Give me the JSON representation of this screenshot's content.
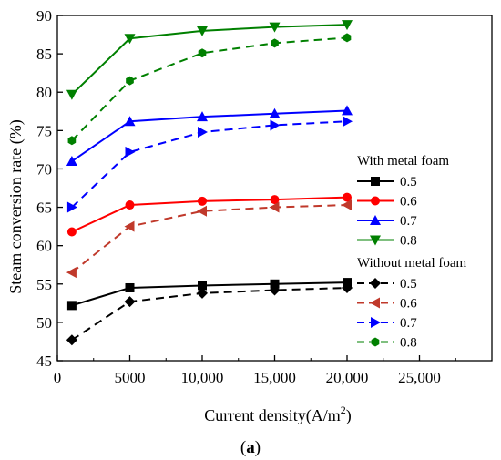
{
  "chart_data": {
    "type": "line",
    "xlabel": "Current density(A/m",
    "xlabel_sup": "2",
    "xlabel_close": ")",
    "ylabel": "Steam conversion rate (%)",
    "xlim": [
      0,
      30000
    ],
    "ylim": [
      45,
      90
    ],
    "x_ticks": [
      0,
      5000,
      10000,
      15000,
      20000,
      25000
    ],
    "x_tick_labels": [
      "0",
      "5000",
      "10,000",
      "15,000",
      "20,000",
      "25,000"
    ],
    "y_ticks": [
      45,
      50,
      55,
      60,
      65,
      70,
      75,
      80,
      85,
      90
    ],
    "y_tick_labels": [
      "45",
      "50",
      "55",
      "60",
      "65",
      "70",
      "75",
      "80",
      "85",
      "90"
    ],
    "grid": false,
    "legend_position": "right",
    "legend_groups": [
      {
        "title": "With metal foam",
        "series_indices": [
          0,
          1,
          2,
          3
        ]
      },
      {
        "title": "Without metal foam",
        "series_indices": [
          4,
          5,
          6,
          7
        ]
      }
    ],
    "x": [
      1000,
      5000,
      10000,
      15000,
      20000
    ],
    "series": [
      {
        "name": "0.5",
        "color": "#000000",
        "dash": "solid",
        "marker": "square",
        "values": [
          52.2,
          54.5,
          54.8,
          55.0,
          55.2
        ]
      },
      {
        "name": "0.6",
        "color": "#ff0000",
        "dash": "solid",
        "marker": "circle",
        "values": [
          61.8,
          65.3,
          65.8,
          66.0,
          66.3
        ]
      },
      {
        "name": "0.7",
        "color": "#0000ff",
        "dash": "solid",
        "marker": "triangle-up",
        "values": [
          71.0,
          76.2,
          76.8,
          77.2,
          77.6
        ]
      },
      {
        "name": "0.8",
        "color": "#008000",
        "dash": "solid",
        "marker": "triangle-down",
        "values": [
          79.7,
          87.0,
          88.0,
          88.5,
          88.8
        ]
      },
      {
        "name": "0.5",
        "color": "#000000",
        "dash": "dashed",
        "marker": "diamond",
        "values": [
          47.7,
          52.7,
          53.8,
          54.2,
          54.5
        ]
      },
      {
        "name": "0.6",
        "color": "#c0392b",
        "dash": "dashed",
        "marker": "triangle-left",
        "values": [
          56.5,
          62.5,
          64.5,
          65.0,
          65.3
        ]
      },
      {
        "name": "0.7",
        "color": "#0000ff",
        "dash": "dashed",
        "marker": "triangle-right",
        "values": [
          65.0,
          72.2,
          74.8,
          75.7,
          76.2
        ]
      },
      {
        "name": "0.8",
        "color": "#008000",
        "dash": "dashed",
        "marker": "hexagon",
        "values": [
          73.7,
          81.5,
          85.1,
          86.4,
          87.1
        ]
      }
    ]
  },
  "caption": "(a)"
}
